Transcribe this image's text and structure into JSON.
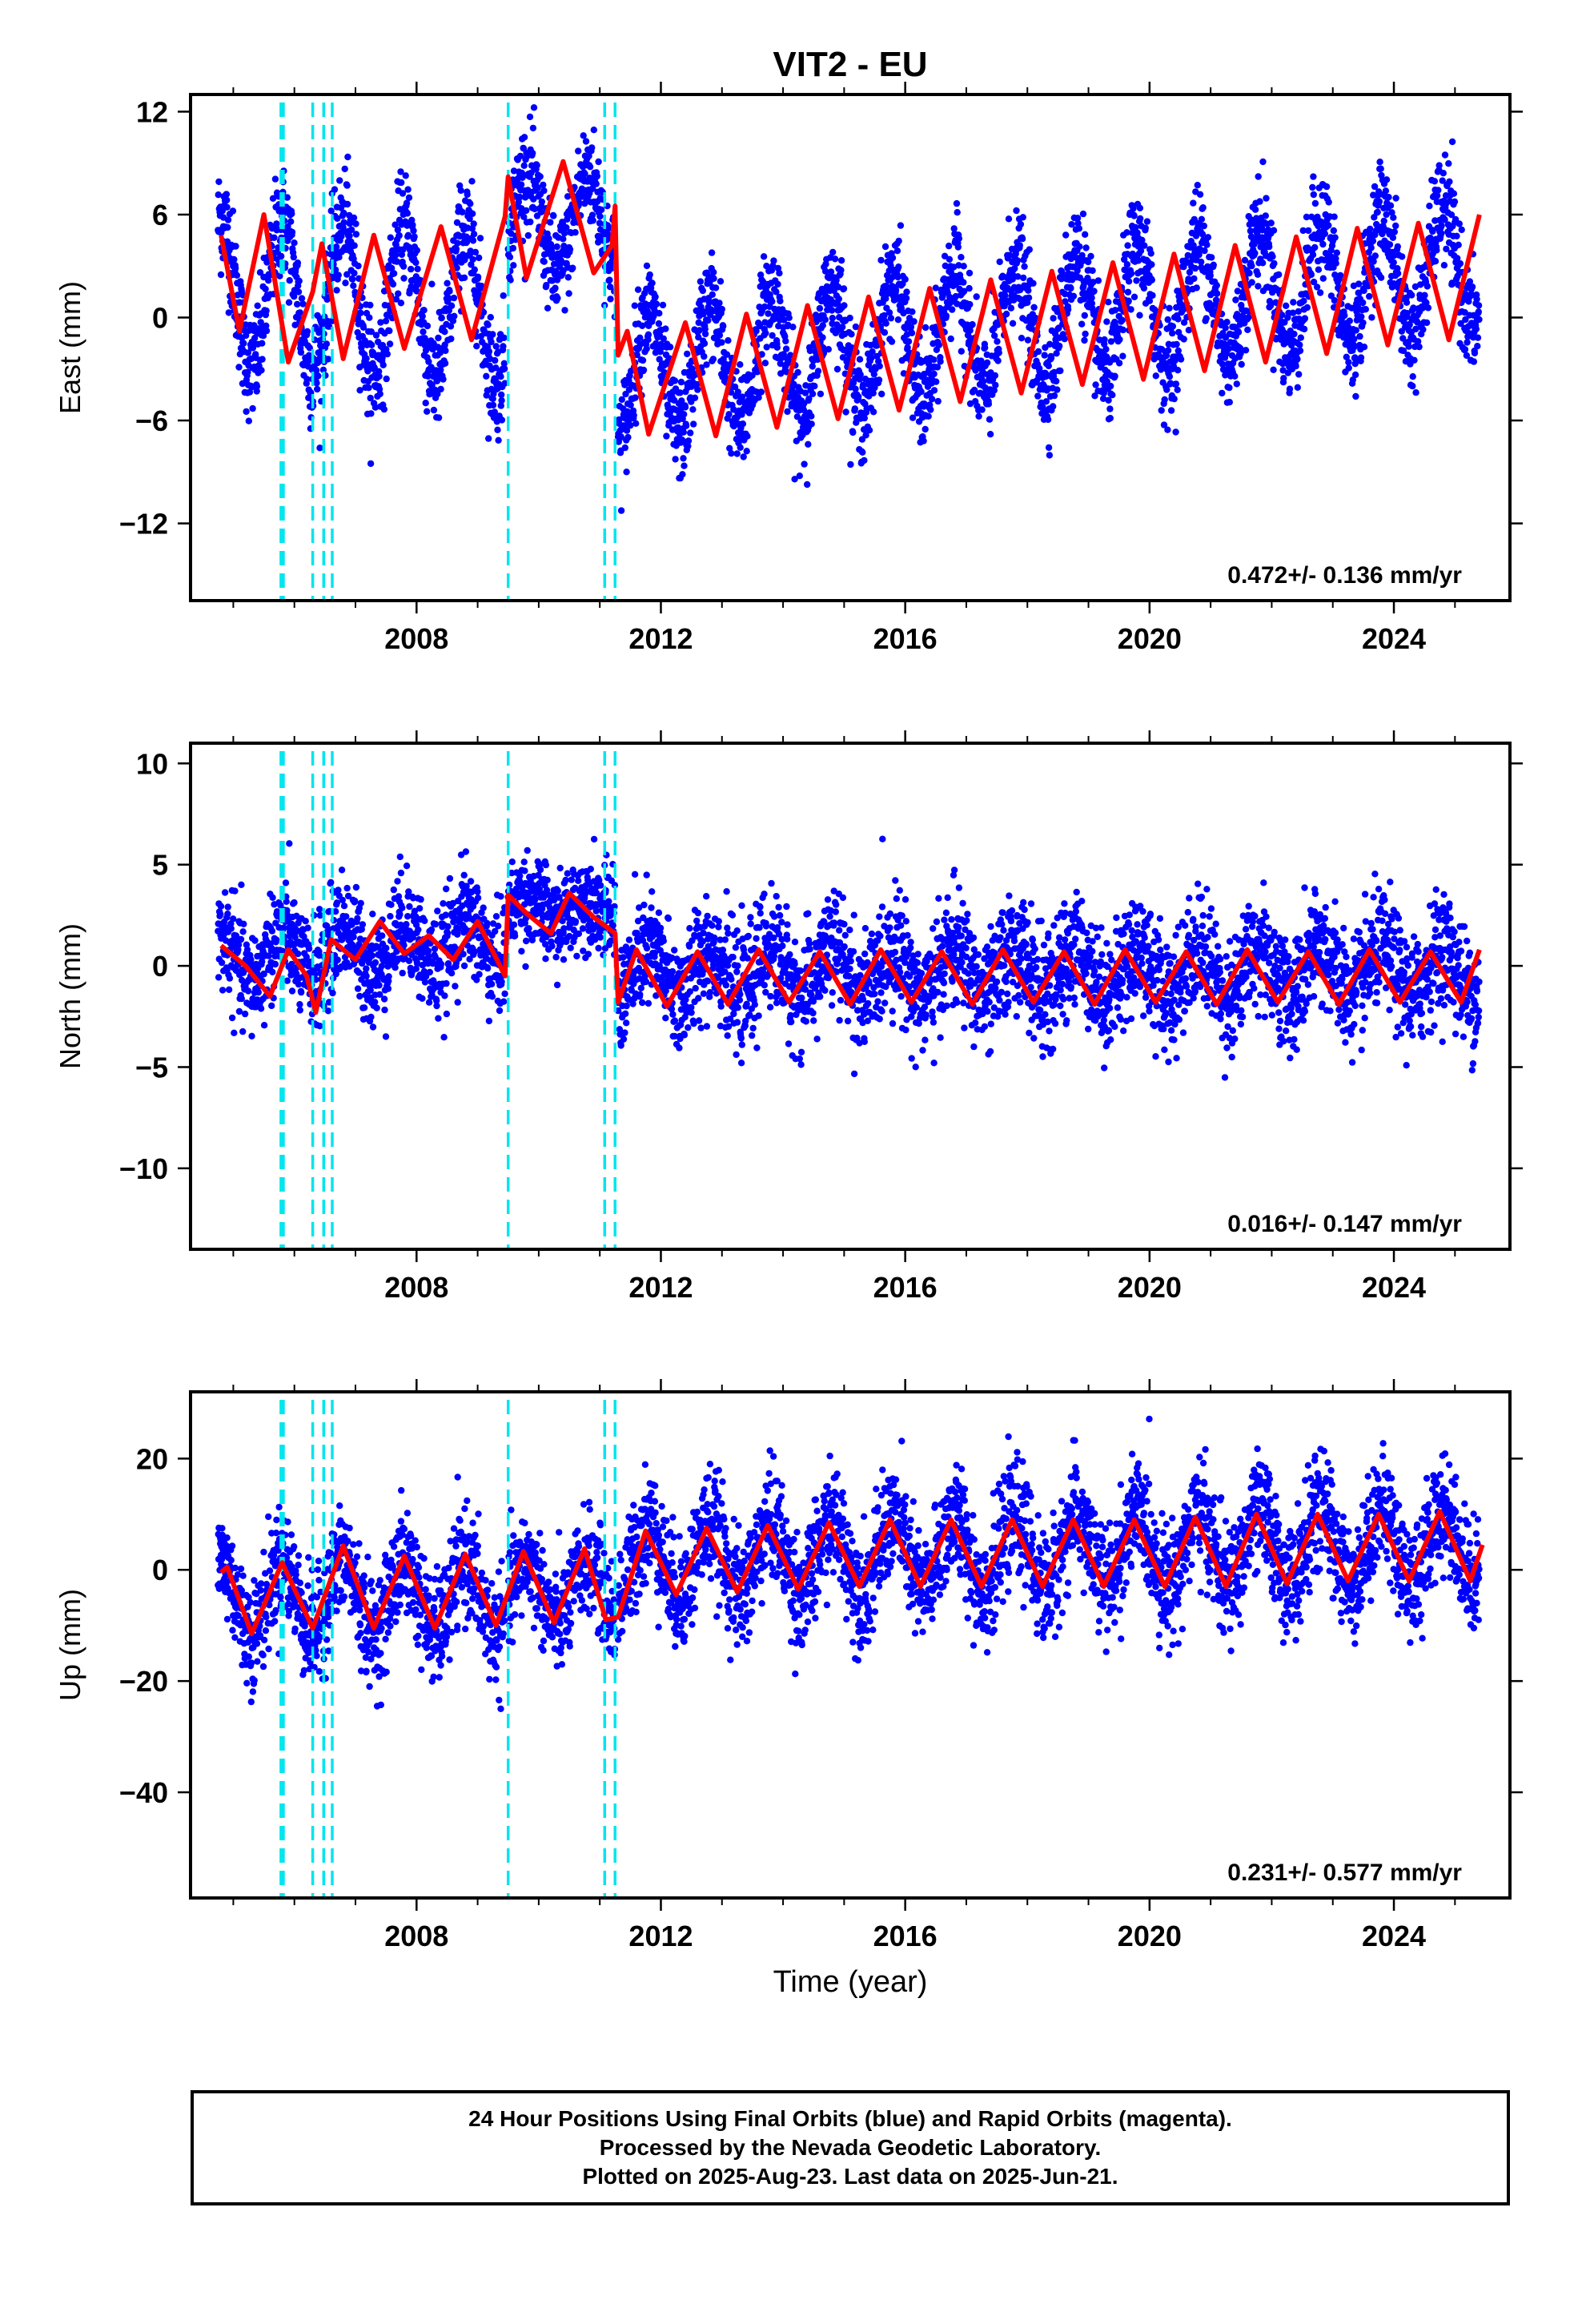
{
  "title": "VIT2 - EU",
  "xlabel": "Time (year)",
  "footer": {
    "line1": "24 Hour Positions Using Final Orbits (blue) and Rapid Orbits (magenta).",
    "line2": "Processed by the Nevada Geodetic Laboratory.",
    "line3": "Plotted on 2025-Aug-23. Last data on 2025-Jun-21."
  },
  "colors": {
    "points": "#0000ff",
    "model": "#ff0000",
    "breaks": "#00e5ee",
    "axes": "#000000"
  },
  "chart_data": [
    {
      "type": "scatter",
      "name": "east",
      "ylabel": "East (mm)",
      "xlim": [
        2004.3,
        2025.9
      ],
      "ylim": [
        -16.5,
        13
      ],
      "xticks": [
        2008,
        2012,
        2016,
        2020,
        2024
      ],
      "yticks": [
        12,
        6,
        0,
        -6,
        -12
      ],
      "ytick_labels": [
        "12",
        "6",
        "0",
        "−6",
        "−12"
      ],
      "rate": "0.472+/- 0.136 mm/yr",
      "segments": [
        {
          "start": 2004.75,
          "end": 2009.45,
          "offset": 1.5,
          "trend": -0.2,
          "amp": 4.3,
          "scatter": 1.6
        },
        {
          "start": 2009.5,
          "end": 2011.25,
          "offset": 5.5,
          "trend": 0.0,
          "amp": 2.8,
          "scatter": 1.5
        },
        {
          "start": 2011.3,
          "end": 2025.4,
          "offset": -3.5,
          "trend": 0.47,
          "amp": 3.6,
          "scatter": 1.5
        }
      ],
      "model_points": [
        [
          2004.8,
          4.8
        ],
        [
          2005.1,
          -0.8
        ],
        [
          2005.5,
          6.0
        ],
        [
          2005.9,
          -2.6
        ],
        [
          2006.3,
          1.5
        ],
        [
          2006.45,
          4.3
        ],
        [
          2006.8,
          -2.4
        ],
        [
          2007.3,
          4.8
        ],
        [
          2007.8,
          -1.8
        ],
        [
          2008.4,
          5.3
        ],
        [
          2008.9,
          -1.3
        ],
        [
          2009.45,
          5.9
        ],
        [
          2009.5,
          8.2
        ],
        [
          2009.8,
          2.3
        ],
        [
          2010.4,
          9.1
        ],
        [
          2010.9,
          2.6
        ],
        [
          2011.2,
          4.2
        ],
        [
          2011.25,
          6.5
        ],
        [
          2011.3,
          -2.2
        ],
        [
          2011.45,
          -0.8
        ],
        [
          2011.8,
          -6.8
        ],
        [
          2012.4,
          -0.3
        ],
        [
          2012.9,
          -6.9
        ],
        [
          2013.4,
          0.2
        ],
        [
          2013.9,
          -6.4
        ],
        [
          2014.4,
          0.7
        ],
        [
          2014.9,
          -5.9
        ],
        [
          2015.4,
          1.2
        ],
        [
          2015.9,
          -5.4
        ],
        [
          2016.4,
          1.7
        ],
        [
          2016.9,
          -4.9
        ],
        [
          2017.4,
          2.2
        ],
        [
          2017.9,
          -4.4
        ],
        [
          2018.4,
          2.7
        ],
        [
          2018.9,
          -3.9
        ],
        [
          2019.4,
          3.2
        ],
        [
          2019.9,
          -3.6
        ],
        [
          2020.4,
          3.7
        ],
        [
          2020.9,
          -3.1
        ],
        [
          2021.4,
          4.2
        ],
        [
          2021.9,
          -2.6
        ],
        [
          2022.4,
          4.7
        ],
        [
          2022.9,
          -2.1
        ],
        [
          2023.4,
          5.2
        ],
        [
          2023.9,
          -1.6
        ],
        [
          2024.4,
          5.5
        ],
        [
          2024.9,
          -1.3
        ],
        [
          2025.4,
          6.0
        ]
      ]
    },
    {
      "type": "scatter",
      "name": "north",
      "ylabel": "North (mm)",
      "xlim": [
        2004.3,
        2025.9
      ],
      "ylim": [
        -14,
        11
      ],
      "xticks": [
        2008,
        2012,
        2016,
        2020,
        2024
      ],
      "yticks": [
        10,
        5,
        0,
        -5,
        -10
      ],
      "ytick_labels": [
        "10",
        "5",
        "0",
        "−5",
        "−10"
      ],
      "rate": "0.016+/- 0.147 mm/yr",
      "segments": [
        {
          "start": 2004.75,
          "end": 2009.45,
          "offset": 0.2,
          "trend": 0.25,
          "amp": 1.2,
          "scatter": 1.3
        },
        {
          "start": 2009.5,
          "end": 2011.25,
          "offset": 2.8,
          "trend": 0.0,
          "amp": 0.6,
          "scatter": 1.1
        },
        {
          "start": 2011.3,
          "end": 2025.4,
          "offset": -0.3,
          "trend": 0.0,
          "amp": 1.2,
          "scatter": 1.4
        }
      ],
      "model_points": [
        [
          2004.8,
          1.0
        ],
        [
          2005.2,
          0.0
        ],
        [
          2005.6,
          -1.5
        ],
        [
          2005.9,
          0.8
        ],
        [
          2006.2,
          -0.5
        ],
        [
          2006.35,
          -2.3
        ],
        [
          2006.6,
          1.3
        ],
        [
          2007.0,
          0.3
        ],
        [
          2007.4,
          2.2
        ],
        [
          2007.8,
          0.6
        ],
        [
          2008.2,
          1.5
        ],
        [
          2008.6,
          0.3
        ],
        [
          2009.0,
          2.2
        ],
        [
          2009.45,
          -0.5
        ],
        [
          2009.5,
          3.5
        ],
        [
          2009.8,
          2.6
        ],
        [
          2010.2,
          1.6
        ],
        [
          2010.5,
          3.6
        ],
        [
          2010.9,
          2.4
        ],
        [
          2011.25,
          1.6
        ],
        [
          2011.3,
          -1.8
        ],
        [
          2011.6,
          0.8
        ],
        [
          2012.1,
          -2.0
        ],
        [
          2012.6,
          0.7
        ],
        [
          2013.1,
          -1.9
        ],
        [
          2013.6,
          0.8
        ],
        [
          2014.1,
          -1.8
        ],
        [
          2014.6,
          0.7
        ],
        [
          2015.1,
          -1.9
        ],
        [
          2015.6,
          0.8
        ],
        [
          2016.1,
          -1.8
        ],
        [
          2016.6,
          0.7
        ],
        [
          2017.1,
          -1.9
        ],
        [
          2017.6,
          0.8
        ],
        [
          2018.1,
          -1.8
        ],
        [
          2018.6,
          0.7
        ],
        [
          2019.1,
          -1.9
        ],
        [
          2019.6,
          0.8
        ],
        [
          2020.1,
          -1.8
        ],
        [
          2020.6,
          0.7
        ],
        [
          2021.1,
          -1.9
        ],
        [
          2021.6,
          0.8
        ],
        [
          2022.1,
          -1.8
        ],
        [
          2022.6,
          0.7
        ],
        [
          2023.1,
          -1.9
        ],
        [
          2023.6,
          0.8
        ],
        [
          2024.1,
          -1.8
        ],
        [
          2024.6,
          0.7
        ],
        [
          2025.1,
          -1.8
        ],
        [
          2025.4,
          0.8
        ]
      ]
    },
    {
      "type": "scatter",
      "name": "up",
      "ylabel": "Up (mm)",
      "xlim": [
        2004.3,
        2025.9
      ],
      "ylim": [
        -59,
        32
      ],
      "xticks": [
        2008,
        2012,
        2016,
        2020,
        2024
      ],
      "yticks": [
        20,
        0,
        -20,
        -40
      ],
      "ytick_labels": [
        "20",
        "0",
        "−20",
        "−40"
      ],
      "rate": "0.231+/- 0.577 mm/yr",
      "segments": [
        {
          "start": 2004.75,
          "end": 2009.45,
          "offset": -5.0,
          "trend": 0.0,
          "amp": 6.5,
          "scatter": 4.8
        },
        {
          "start": 2009.5,
          "end": 2011.25,
          "offset": -4.0,
          "trend": 0.0,
          "amp": 5.5,
          "scatter": 4.5
        },
        {
          "start": 2011.3,
          "end": 2025.4,
          "offset": 1.5,
          "trend": 0.23,
          "amp": 6.5,
          "scatter": 5.0
        }
      ],
      "model_points": [
        [
          2004.8,
          -0.5
        ],
        [
          2004.9,
          0.5
        ],
        [
          2005.3,
          -11.5
        ],
        [
          2005.8,
          1.3
        ],
        [
          2006.3,
          -10.5
        ],
        [
          2006.8,
          4.3
        ],
        [
          2007.3,
          -10.5
        ],
        [
          2007.8,
          2.5
        ],
        [
          2008.3,
          -10.5
        ],
        [
          2008.8,
          2.8
        ],
        [
          2009.3,
          -10.0
        ],
        [
          2009.75,
          3.3
        ],
        [
          2010.25,
          -9.5
        ],
        [
          2010.75,
          3.8
        ],
        [
          2011.1,
          -9.0
        ],
        [
          2011.3,
          -8.5
        ],
        [
          2011.75,
          7.0
        ],
        [
          2012.25,
          -4.5
        ],
        [
          2012.75,
          7.5
        ],
        [
          2013.25,
          -4.0
        ],
        [
          2013.75,
          8.0
        ],
        [
          2014.25,
          -3.5
        ],
        [
          2014.75,
          8.5
        ],
        [
          2015.25,
          -3.0
        ],
        [
          2015.75,
          9.0
        ],
        [
          2016.25,
          -3.0
        ],
        [
          2016.75,
          9.0
        ],
        [
          2017.25,
          -3.0
        ],
        [
          2017.75,
          9.0
        ],
        [
          2018.25,
          -3.0
        ],
        [
          2018.75,
          9.0
        ],
        [
          2019.25,
          -3.0
        ],
        [
          2019.75,
          9.0
        ],
        [
          2020.25,
          -3.0
        ],
        [
          2020.75,
          9.5
        ],
        [
          2021.25,
          -3.0
        ],
        [
          2021.75,
          10.0
        ],
        [
          2022.25,
          -2.5
        ],
        [
          2022.75,
          10.0
        ],
        [
          2023.25,
          -2.0
        ],
        [
          2023.75,
          10.0
        ],
        [
          2024.25,
          -2.0
        ],
        [
          2024.75,
          10.5
        ],
        [
          2025.25,
          -2.0
        ],
        [
          2025.45,
          4.5
        ]
      ]
    }
  ],
  "break_years": [
    2005.78,
    2005.82,
    2006.3,
    2006.48,
    2006.62,
    2009.5,
    2011.08,
    2011.25
  ]
}
